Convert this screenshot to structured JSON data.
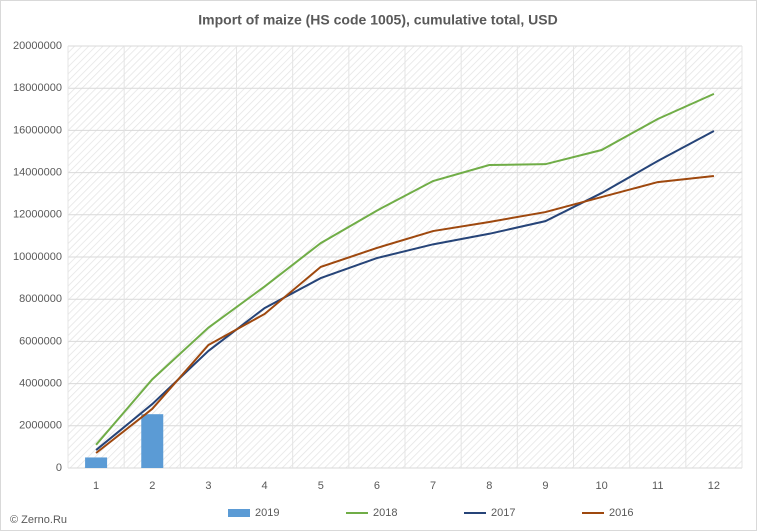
{
  "chart_data": {
    "type": "line",
    "title": "Import of maize (HS code 1005), cumulative total, USD",
    "source": "© Zerno.Ru",
    "categories": [
      "1",
      "2",
      "3",
      "4",
      "5",
      "6",
      "7",
      "8",
      "9",
      "10",
      "11",
      "12"
    ],
    "series": [
      {
        "name": "2019",
        "type": "bar",
        "color": "#5b9bd5",
        "values": [
          500000,
          2550000,
          null,
          null,
          null,
          null,
          null,
          null,
          null,
          null,
          null,
          null
        ]
      },
      {
        "name": "2018",
        "type": "line",
        "color": "#70ad47",
        "values": [
          1100000,
          4200000,
          6650000,
          8600000,
          10660000,
          12200000,
          13600000,
          14360000,
          14400000,
          15070000,
          16540000,
          17730000
        ]
      },
      {
        "name": "2017",
        "type": "line",
        "color": "#264478",
        "values": [
          850000,
          3030000,
          5550000,
          7580000,
          9000000,
          9950000,
          10600000,
          11100000,
          11700000,
          13030000,
          14550000,
          15970000
        ]
      },
      {
        "name": "2016",
        "type": "line",
        "color": "#9e480e",
        "values": [
          710000,
          2800000,
          5830000,
          7300000,
          9530000,
          10430000,
          11230000,
          11660000,
          12130000,
          12840000,
          13550000,
          13840000
        ]
      }
    ],
    "ylim": [
      0,
      20000000
    ],
    "yticks": [
      0,
      2000000,
      4000000,
      6000000,
      8000000,
      10000000,
      12000000,
      14000000,
      16000000,
      18000000,
      20000000
    ],
    "grid": true,
    "legend": "bottom"
  }
}
